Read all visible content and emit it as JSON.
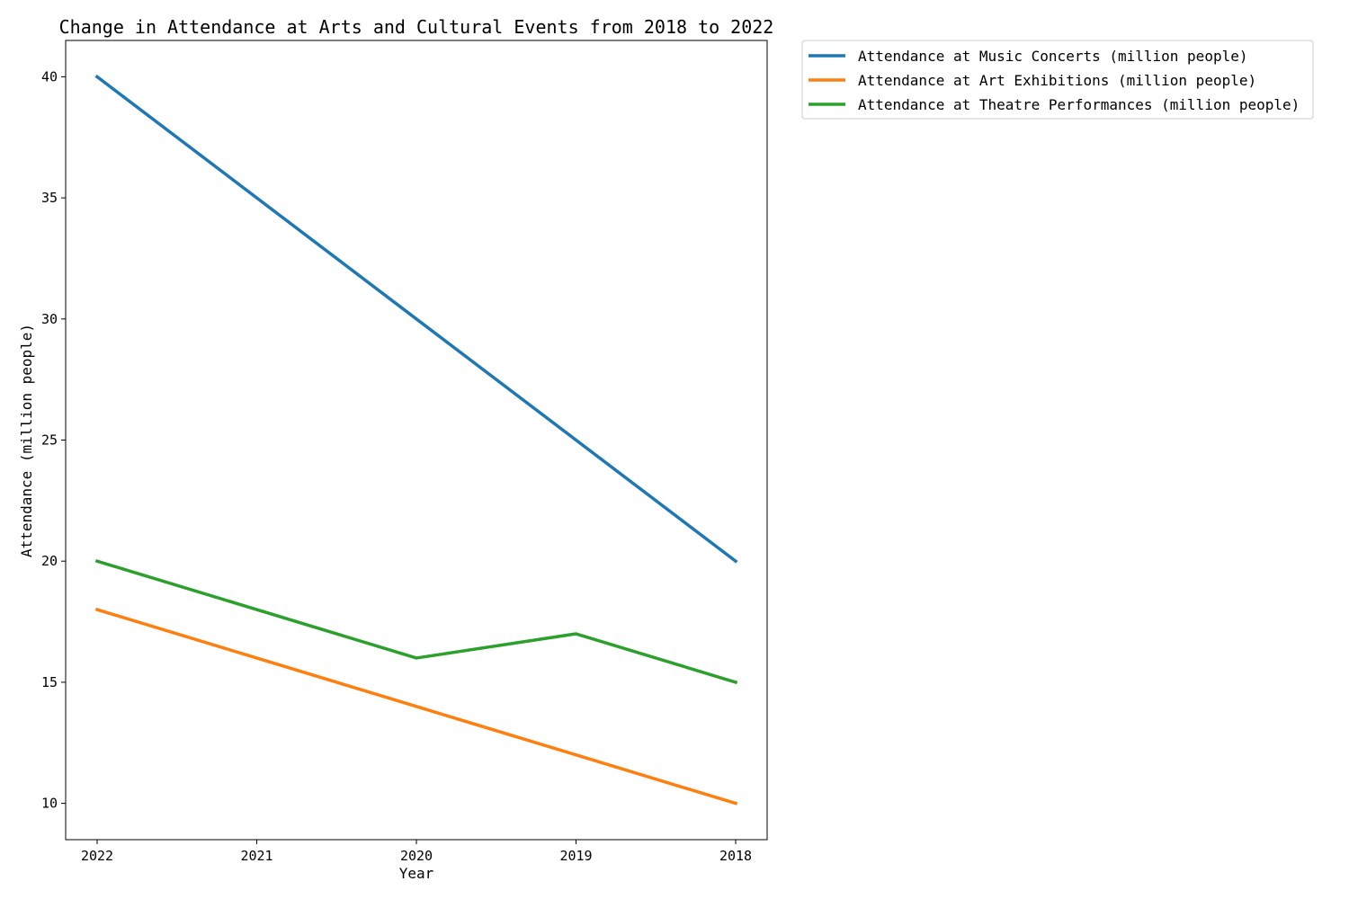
{
  "chart_data": {
    "type": "line",
    "title": "Change in Attendance at Arts and Cultural Events from 2018 to 2022",
    "xlabel": "Year",
    "ylabel": "Attendance (million people)",
    "categories": [
      "2022",
      "2021",
      "2020",
      "2019",
      "2018"
    ],
    "ylim": [
      8.5,
      41.5
    ],
    "yticks": [
      10,
      15,
      20,
      25,
      30,
      35,
      40
    ],
    "grid": false,
    "legend_position": "outside-top-right",
    "series": [
      {
        "name": "Attendance at Music Concerts (million people)",
        "color": "#1f77b4",
        "values": [
          40,
          35,
          30,
          25,
          20
        ]
      },
      {
        "name": "Attendance at Art Exhibitions (million people)",
        "color": "#ff7f0e",
        "values": [
          18,
          16,
          14,
          12,
          10
        ]
      },
      {
        "name": "Attendance at Theatre Performances (million people)",
        "color": "#2ca02c",
        "values": [
          20,
          18,
          16,
          17,
          15
        ]
      }
    ]
  }
}
